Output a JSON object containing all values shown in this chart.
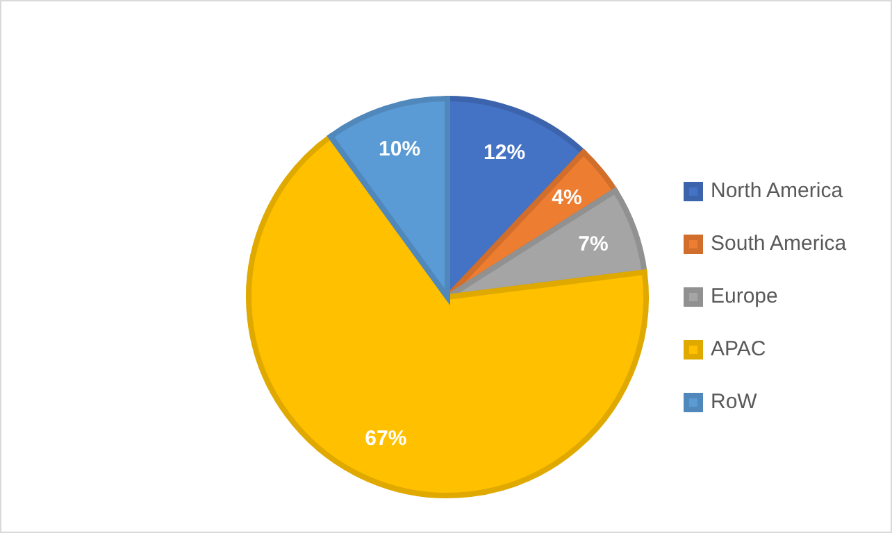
{
  "chart_data": {
    "type": "pie",
    "categories": [
      "North America",
      "South America",
      "Europe",
      "APAC",
      "RoW"
    ],
    "values": [
      12,
      4,
      7,
      67,
      10
    ],
    "colors": [
      "#4472c4",
      "#ed7d31",
      "#a5a5a5",
      "#ffc000",
      "#5b9bd5"
    ],
    "value_labels": [
      "12%",
      "4%",
      "7%",
      "67%",
      "10%"
    ],
    "legend": "right"
  }
}
